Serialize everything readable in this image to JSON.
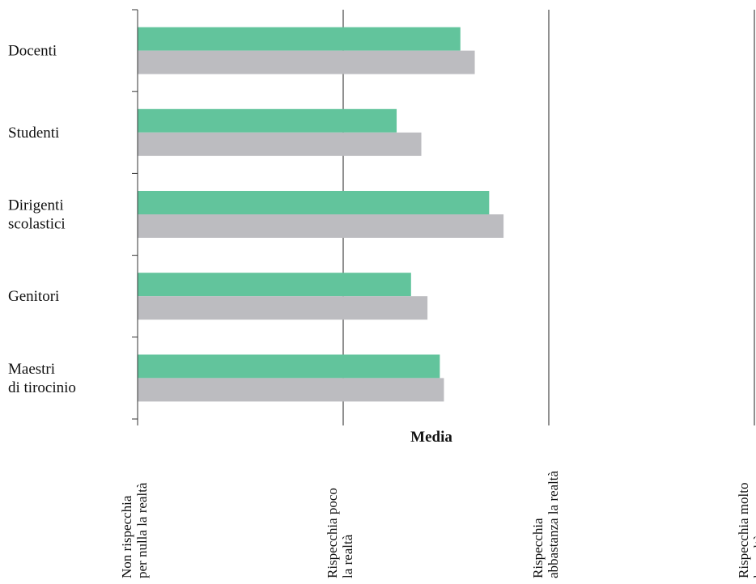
{
  "chart_data": {
    "type": "bar",
    "orientation": "horizontal",
    "categories": [
      [
        "Docenti"
      ],
      [
        "Studenti"
      ],
      [
        "Dirigenti",
        "scolastici"
      ],
      [
        "Genitori"
      ],
      [
        "Maestri",
        "di tirocinio"
      ]
    ],
    "series": [
      {
        "color": "#62c49c",
        "values": [
          2.57,
          2.26,
          2.71,
          2.33,
          2.47
        ]
      },
      {
        "color": "#bcbcc0",
        "values": [
          2.64,
          2.38,
          2.78,
          2.41,
          2.49
        ]
      }
    ],
    "xlabel": "Media",
    "xlim": [
      1,
      4
    ],
    "ticks": [
      {
        "value": 1,
        "lines": [
          "Non rispecchia",
          "per nulla la realtà"
        ]
      },
      {
        "value": 2,
        "lines": [
          "Rispecchia poco",
          "la realtà"
        ]
      },
      {
        "value": 3,
        "lines": [
          "Rispecchia",
          "abbastanza la realtà"
        ]
      },
      {
        "value": 4,
        "lines": [
          "Rispecchia molto",
          "la realtà"
        ]
      }
    ],
    "grid": true,
    "legend": "none"
  }
}
